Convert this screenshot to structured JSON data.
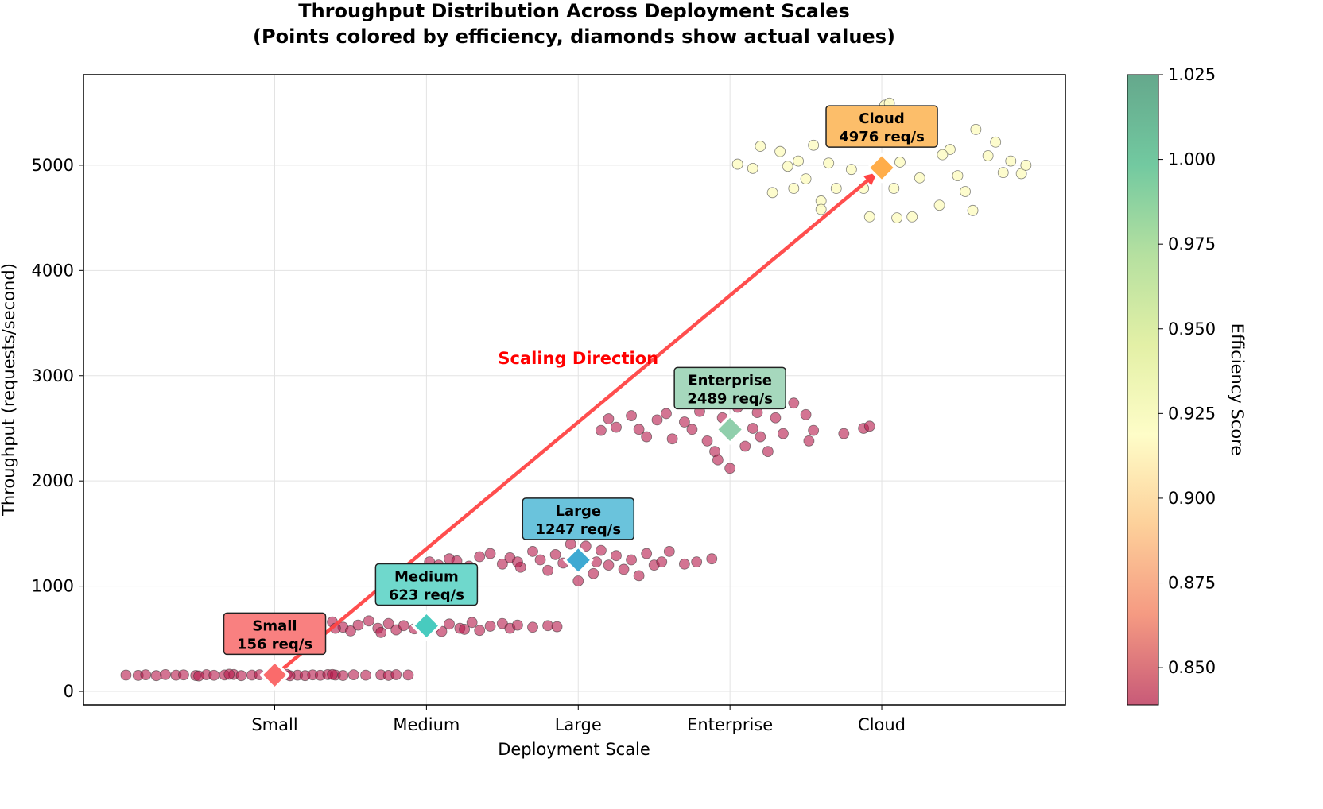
{
  "chart_data": {
    "type": "scatter",
    "title": "Throughput Distribution Across Deployment Scales",
    "subtitle": "(Points colored by efficiency, diamonds show actual values)",
    "xlabel": "Deployment Scale",
    "ylabel": "Throughput (requests/second)",
    "categories": [
      "Small",
      "Medium",
      "Large",
      "Enterprise",
      "Cloud"
    ],
    "xlim": [
      -1.26,
      5.21
    ],
    "ylim": [
      -128,
      5860
    ],
    "yticks": [
      0,
      1000,
      2000,
      3000,
      4000,
      5000
    ],
    "grid": true,
    "colorbar": {
      "label": "Efficiency Score",
      "range": [
        0.839,
        1.025
      ],
      "ticks": [
        "0.850",
        "0.875",
        "0.900",
        "0.925",
        "0.950",
        "0.975",
        "1.000",
        "1.025"
      ],
      "colors": [
        "#c85a78",
        "#f59a82",
        "#fdd09a",
        "#fefdc8",
        "#e3f0a6",
        "#b5e0a0",
        "#72c9a0",
        "#65a88c"
      ]
    },
    "groups": [
      {
        "category": "Small",
        "value": 156,
        "label": "156 req/s",
        "diamond_color": "#fa6b6b",
        "box_color": "#f98080",
        "point_color": "#b5184a",
        "points": [
          [
            -0.98,
            155
          ],
          [
            -0.9,
            152
          ],
          [
            -0.85,
            158
          ],
          [
            -0.78,
            150
          ],
          [
            -0.72,
            160
          ],
          [
            -0.65,
            154
          ],
          [
            -0.6,
            157
          ],
          [
            -0.52,
            151
          ],
          [
            -0.45,
            159
          ],
          [
            -0.4,
            153
          ],
          [
            -0.33,
            156
          ],
          [
            -0.27,
            161
          ],
          [
            -0.22,
            150
          ],
          [
            -0.15,
            155
          ],
          [
            -0.1,
            158
          ],
          [
            -0.05,
            152
          ],
          [
            0.02,
            157
          ],
          [
            0.08,
            162
          ],
          [
            0.15,
            154
          ],
          [
            0.2,
            150
          ],
          [
            0.25,
            157
          ],
          [
            0.3,
            153
          ],
          [
            0.35,
            160
          ],
          [
            0.4,
            155
          ],
          [
            0.45,
            151
          ],
          [
            0.52,
            158
          ],
          [
            0.6,
            154
          ],
          [
            0.7,
            157
          ],
          [
            0.75,
            152
          ],
          [
            0.8,
            159
          ],
          [
            0.88,
            156
          ],
          [
            -0.5,
            147
          ],
          [
            -0.3,
            163
          ],
          [
            0.1,
            149
          ],
          [
            0.38,
            161
          ]
        ]
      },
      {
        "category": "Medium",
        "value": 623,
        "label": "623 req/s",
        "diamond_color": "#48cbbf",
        "box_color": "#6fd8cc",
        "point_color": "#b5184a",
        "points": [
          [
            0.05,
            620
          ],
          [
            0.15,
            605
          ],
          [
            0.25,
            640
          ],
          [
            0.3,
            590
          ],
          [
            0.38,
            660
          ],
          [
            0.45,
            610
          ],
          [
            0.5,
            575
          ],
          [
            0.55,
            630
          ],
          [
            0.62,
            670
          ],
          [
            0.68,
            600
          ],
          [
            0.75,
            645
          ],
          [
            0.8,
            585
          ],
          [
            0.85,
            625
          ],
          [
            0.92,
            595
          ],
          [
            0.97,
            650
          ],
          [
            1.05,
            610
          ],
          [
            1.1,
            570
          ],
          [
            1.15,
            640
          ],
          [
            1.22,
            600
          ],
          [
            1.3,
            655
          ],
          [
            1.35,
            580
          ],
          [
            1.42,
            620
          ],
          [
            1.5,
            645
          ],
          [
            1.55,
            600
          ],
          [
            1.6,
            630
          ],
          [
            1.7,
            610
          ],
          [
            1.8,
            625
          ],
          [
            1.86,
            615
          ],
          [
            0.2,
            660
          ],
          [
            0.7,
            560
          ],
          [
            1.25,
            590
          ],
          [
            0.4,
            600
          ]
        ]
      },
      {
        "category": "Large",
        "value": 1247,
        "label": "1247 req/s",
        "diamond_color": "#3ea9d2",
        "box_color": "#6ac3dc",
        "point_color": "#b5184a",
        "points": [
          [
            1.02,
            1230
          ],
          [
            1.08,
            1200
          ],
          [
            1.15,
            1260
          ],
          [
            1.2,
            1240
          ],
          [
            1.28,
            1190
          ],
          [
            1.35,
            1280
          ],
          [
            1.42,
            1310
          ],
          [
            1.5,
            1210
          ],
          [
            1.55,
            1270
          ],
          [
            1.62,
            1180
          ],
          [
            1.7,
            1330
          ],
          [
            1.75,
            1250
          ],
          [
            1.8,
            1150
          ],
          [
            1.85,
            1300
          ],
          [
            1.9,
            1220
          ],
          [
            1.95,
            1400
          ],
          [
            2.0,
            1050
          ],
          [
            2.05,
            1380
          ],
          [
            2.1,
            1120
          ],
          [
            2.15,
            1340
          ],
          [
            2.2,
            1200
          ],
          [
            2.25,
            1290
          ],
          [
            2.3,
            1160
          ],
          [
            2.35,
            1250
          ],
          [
            2.4,
            1100
          ],
          [
            2.45,
            1310
          ],
          [
            2.5,
            1200
          ],
          [
            2.55,
            1230
          ],
          [
            2.6,
            1330
          ],
          [
            2.7,
            1210
          ],
          [
            2.78,
            1230
          ],
          [
            2.88,
            1260
          ],
          [
            1.6,
            1230
          ],
          [
            2.12,
            1230
          ]
        ]
      },
      {
        "category": "Enterprise",
        "value": 2489,
        "label": "2489 req/s",
        "diamond_color": "#90cfac",
        "box_color": "#a6d8bd",
        "point_color": "#b5184a",
        "points": [
          [
            2.15,
            2480
          ],
          [
            2.2,
            2590
          ],
          [
            2.25,
            2510
          ],
          [
            2.35,
            2620
          ],
          [
            2.4,
            2490
          ],
          [
            2.45,
            2420
          ],
          [
            2.52,
            2580
          ],
          [
            2.58,
            2640
          ],
          [
            2.62,
            2400
          ],
          [
            2.7,
            2560
          ],
          [
            2.75,
            2490
          ],
          [
            2.8,
            2660
          ],
          [
            2.85,
            2380
          ],
          [
            2.9,
            2280
          ],
          [
            2.95,
            2600
          ],
          [
            3.0,
            2120
          ],
          [
            3.05,
            2700
          ],
          [
            3.1,
            2330
          ],
          [
            3.15,
            2500
          ],
          [
            3.2,
            2420
          ],
          [
            3.25,
            2280
          ],
          [
            3.3,
            2600
          ],
          [
            3.35,
            2450
          ],
          [
            3.42,
            2740
          ],
          [
            3.5,
            2630
          ],
          [
            3.52,
            2380
          ],
          [
            3.55,
            2480
          ],
          [
            3.75,
            2450
          ],
          [
            3.88,
            2500
          ],
          [
            3.92,
            2520
          ],
          [
            2.92,
            2200
          ],
          [
            3.18,
            2650
          ]
        ]
      },
      {
        "category": "Cloud",
        "value": 4976,
        "label": "4976 req/s",
        "diamond_color": "#ffad4a",
        "box_color": "#fcbe6a",
        "point_color": "#fdfcc8",
        "points": [
          [
            3.05,
            5010
          ],
          [
            3.15,
            4970
          ],
          [
            3.2,
            5180
          ],
          [
            3.28,
            4740
          ],
          [
            3.33,
            5130
          ],
          [
            3.38,
            4990
          ],
          [
            3.42,
            4780
          ],
          [
            3.45,
            5040
          ],
          [
            3.5,
            4870
          ],
          [
            3.55,
            5190
          ],
          [
            3.6,
            4660
          ],
          [
            3.65,
            5020
          ],
          [
            3.7,
            4780
          ],
          [
            3.75,
            5230
          ],
          [
            3.8,
            4960
          ],
          [
            3.88,
            4780
          ],
          [
            3.92,
            4510
          ],
          [
            3.98,
            5300
          ],
          [
            4.02,
            5570
          ],
          [
            4.05,
            5590
          ],
          [
            4.08,
            4780
          ],
          [
            4.12,
            5030
          ],
          [
            4.2,
            4510
          ],
          [
            4.25,
            4880
          ],
          [
            4.3,
            5220
          ],
          [
            4.38,
            4620
          ],
          [
            4.45,
            5150
          ],
          [
            4.5,
            4900
          ],
          [
            4.55,
            4750
          ],
          [
            4.6,
            4570
          ],
          [
            4.62,
            5340
          ],
          [
            4.7,
            5090
          ],
          [
            4.75,
            5220
          ],
          [
            4.8,
            4930
          ],
          [
            4.85,
            5040
          ],
          [
            4.92,
            4920
          ],
          [
            4.95,
            5000
          ],
          [
            4.1,
            4500
          ],
          [
            3.6,
            4580
          ],
          [
            4.4,
            5100
          ]
        ]
      }
    ],
    "annotation": {
      "text": "Scaling Direction",
      "color": "#ff0000",
      "x": 2,
      "y": 3165,
      "arrow_from": [
        0,
        156
      ],
      "arrow_to": [
        3.97,
        4976
      ],
      "arrow_color": "#ff4444"
    }
  }
}
